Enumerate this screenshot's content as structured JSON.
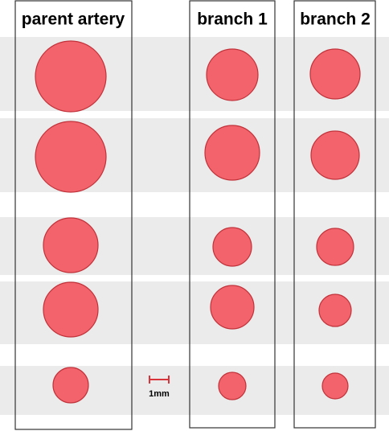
{
  "header": {
    "columns": [
      "parent artery",
      "branch 1",
      "branch 2"
    ]
  },
  "scale_bar": {
    "label": "1mm"
  }
}
